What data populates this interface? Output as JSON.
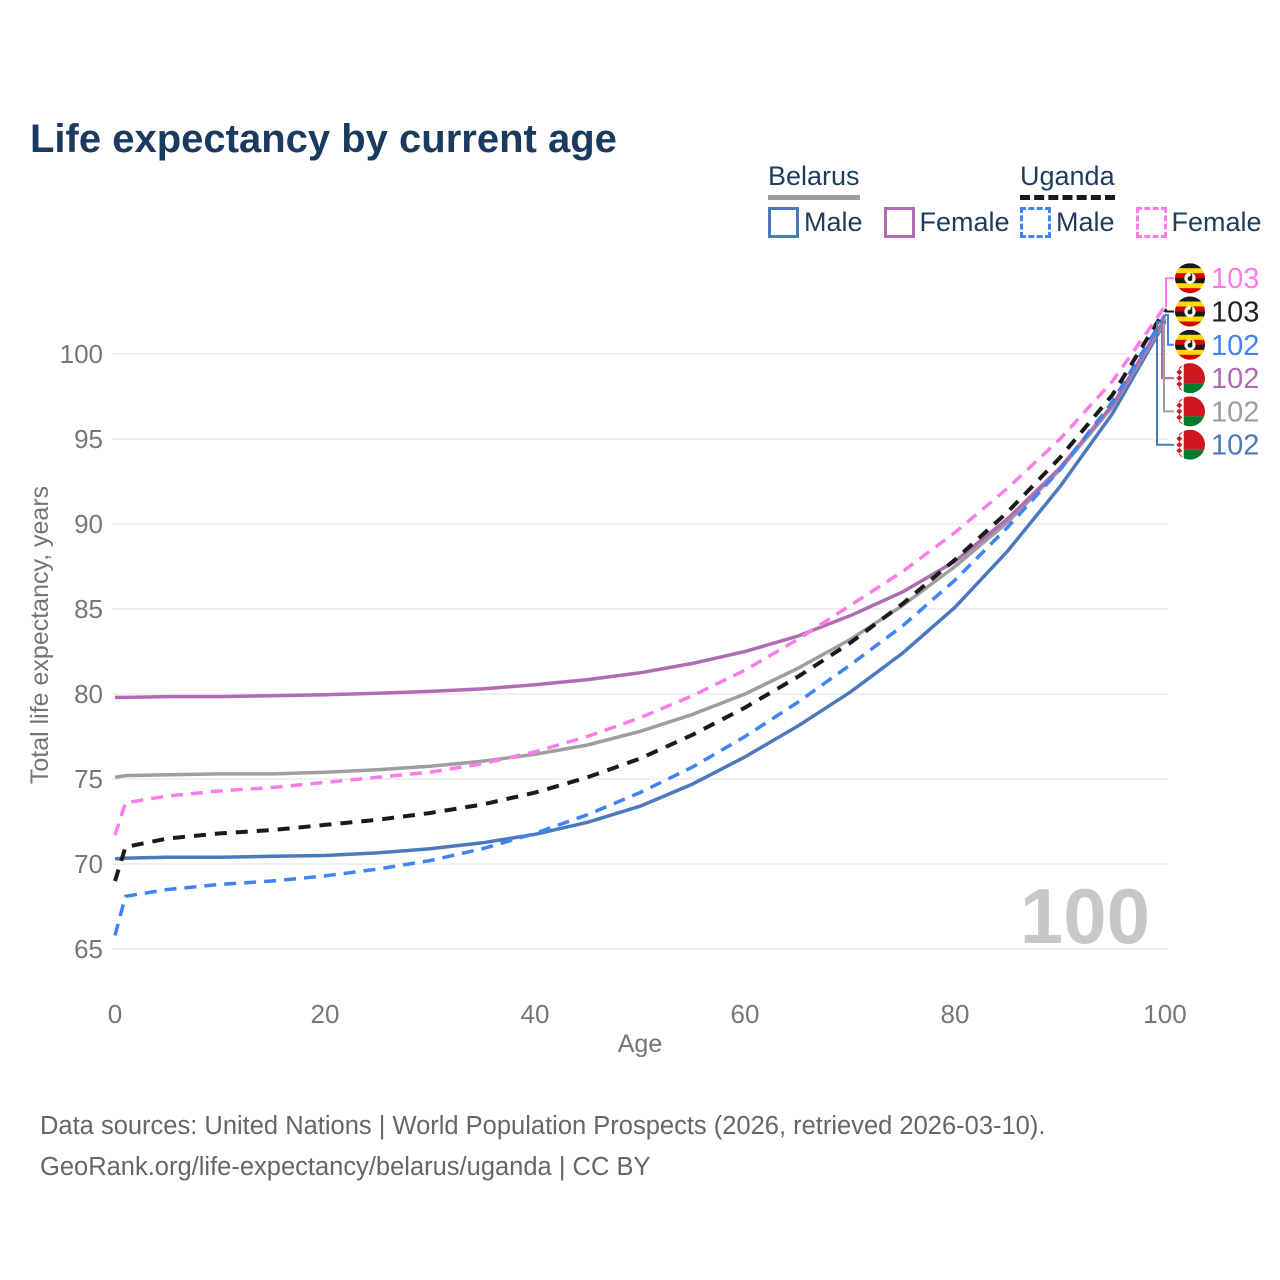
{
  "title": "Life expectancy by current age",
  "watermark": "100",
  "legend": {
    "groups": [
      {
        "label": "Belarus",
        "line_style": "solid",
        "underline_color": "#9e9e9e",
        "items": [
          {
            "label": "Male",
            "color": "#4b7abc",
            "dashed": false
          },
          {
            "label": "Female",
            "color": "#b06cb3",
            "dashed": false
          }
        ]
      },
      {
        "label": "Uganda",
        "line_style": "dashed",
        "underline_color": "#1a1a1a",
        "items": [
          {
            "label": "Male",
            "color": "#4084f4",
            "dashed": true
          },
          {
            "label": "Female",
            "color": "#fc7de8",
            "dashed": true
          }
        ]
      }
    ]
  },
  "footer": {
    "line1": "Data sources: United Nations | World Population Prospects (2026, retrieved 2026-03-10).",
    "line2": "GeoRank.org/life-expectancy/belarus/uganda | CC BY"
  },
  "chart_data": {
    "type": "line",
    "title": "Life expectancy by current age",
    "xlabel": "Age",
    "ylabel": "Total life expectancy, years",
    "xlim": [
      0,
      100
    ],
    "ylim": [
      63,
      104
    ],
    "x_ticks": [
      0,
      20,
      40,
      60,
      80,
      100
    ],
    "y_ticks": [
      65,
      70,
      75,
      80,
      85,
      90,
      95,
      100
    ],
    "grid": "horizontal",
    "legend_position": "top-right",
    "x": [
      0,
      1,
      5,
      10,
      15,
      20,
      25,
      30,
      35,
      40,
      45,
      50,
      55,
      60,
      65,
      70,
      75,
      80,
      85,
      90,
      95,
      100
    ],
    "series": [
      {
        "id": "uganda-female",
        "name": "Uganda Female",
        "country": "Uganda",
        "sex": "Female",
        "color": "#fc7de8",
        "label_color": "#fc7de8",
        "dashed": true,
        "flag": "uganda",
        "end_label": "103",
        "values": [
          71.7,
          73.6,
          74.0,
          74.3,
          74.5,
          74.8,
          75.1,
          75.4,
          75.9,
          76.6,
          77.5,
          78.6,
          79.9,
          81.4,
          83.2,
          85.2,
          87.2,
          89.5,
          92.1,
          95.0,
          98.4,
          102.8
        ]
      },
      {
        "id": "uganda-total",
        "name": "Uganda",
        "country": "Uganda",
        "sex": "Both",
        "color": "#1a1a1a",
        "label_color": "#222222",
        "dashed": true,
        "flag": "uganda",
        "end_label": "103",
        "values": [
          69.0,
          71.0,
          71.5,
          71.8,
          72.0,
          72.3,
          72.6,
          73.0,
          73.5,
          74.2,
          75.1,
          76.2,
          77.6,
          79.2,
          81.0,
          83.0,
          85.3,
          87.9,
          90.7,
          93.9,
          97.6,
          102.6
        ]
      },
      {
        "id": "uganda-male",
        "name": "Uganda Male",
        "country": "Uganda",
        "sex": "Male",
        "color": "#4084f4",
        "label_color": "#4084f4",
        "dashed": true,
        "flag": "uganda",
        "end_label": "102",
        "values": [
          65.8,
          68.1,
          68.5,
          68.8,
          69.0,
          69.3,
          69.7,
          70.2,
          70.9,
          71.8,
          72.9,
          74.2,
          75.7,
          77.5,
          79.5,
          81.7,
          84.0,
          86.7,
          89.8,
          93.2,
          97.2,
          102.3
        ]
      },
      {
        "id": "belarus-female",
        "name": "Belarus Female",
        "country": "Belarus",
        "sex": "Female",
        "color": "#b06cb3",
        "label_color": "#b06cb3",
        "dashed": false,
        "flag": "belarus",
        "end_label": "102",
        "values": [
          79.8,
          79.8,
          79.85,
          79.85,
          79.9,
          79.95,
          80.05,
          80.15,
          80.3,
          80.55,
          80.85,
          81.25,
          81.8,
          82.5,
          83.4,
          84.6,
          86.0,
          87.8,
          90.3,
          93.3,
          97.0,
          102.1
        ]
      },
      {
        "id": "belarus-total",
        "name": "Belarus",
        "country": "Belarus",
        "sex": "Both",
        "color": "#9e9e9e",
        "label_color": "#9e9e9e",
        "dashed": false,
        "flag": "belarus",
        "end_label": "102",
        "values": [
          75.1,
          75.2,
          75.25,
          75.3,
          75.3,
          75.4,
          75.55,
          75.75,
          76.05,
          76.45,
          77.0,
          77.8,
          78.8,
          80.0,
          81.5,
          83.2,
          85.2,
          87.5,
          90.1,
          93.2,
          96.9,
          102.0
        ]
      },
      {
        "id": "belarus-male",
        "name": "Belarus Male",
        "country": "Belarus",
        "sex": "Male",
        "color": "#4b7abc",
        "label_color": "#4b7abc",
        "dashed": false,
        "flag": "belarus",
        "end_label": "102",
        "values": [
          70.3,
          70.35,
          70.4,
          70.4,
          70.45,
          70.5,
          70.65,
          70.9,
          71.25,
          71.75,
          72.45,
          73.4,
          74.7,
          76.3,
          78.1,
          80.1,
          82.4,
          85.1,
          88.4,
          92.2,
          96.5,
          101.9
        ]
      }
    ]
  }
}
